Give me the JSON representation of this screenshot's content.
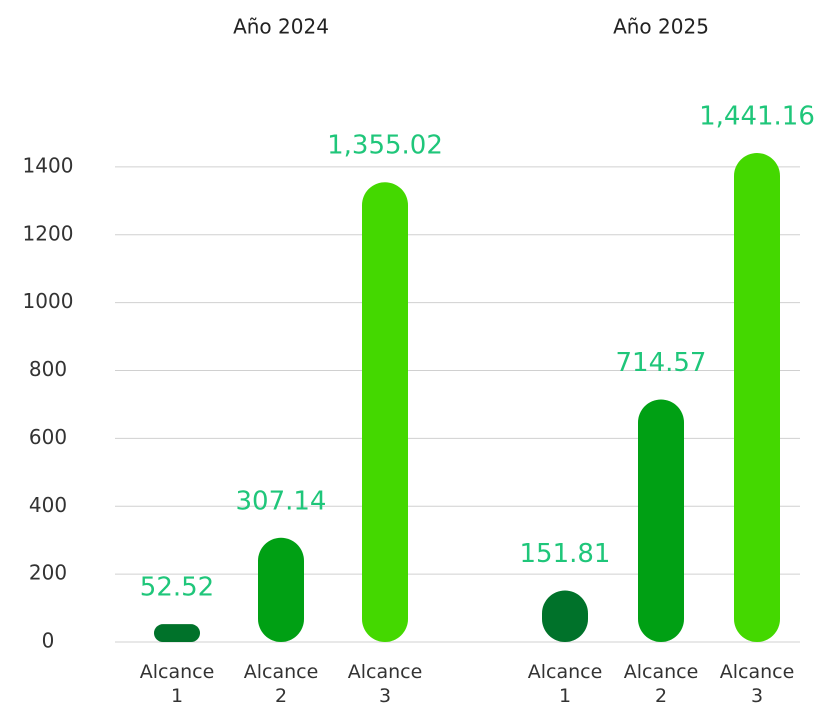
{
  "chart_data": {
    "type": "bar",
    "categories": [
      "Alcance 1",
      "Alcance 2",
      "Alcance 3"
    ],
    "series": [
      {
        "name": "Año 2024",
        "values": [
          52.52,
          307.14,
          1355.02
        ],
        "value_labels": [
          "52.52",
          "307.14",
          "1,355.02"
        ]
      },
      {
        "name": "Año 2025",
        "values": [
          151.81,
          714.57,
          1441.16
        ],
        "value_labels": [
          "151.81",
          "714.57",
          "1,441.16"
        ]
      }
    ],
    "colors": [
      "#00722a",
      "#00a014",
      "#44d800"
    ],
    "label_color": "#1fc67a",
    "ylim": [
      0,
      1500
    ],
    "yticks": [
      0,
      200,
      400,
      600,
      800,
      1000,
      1200,
      1400
    ],
    "grid": true
  }
}
